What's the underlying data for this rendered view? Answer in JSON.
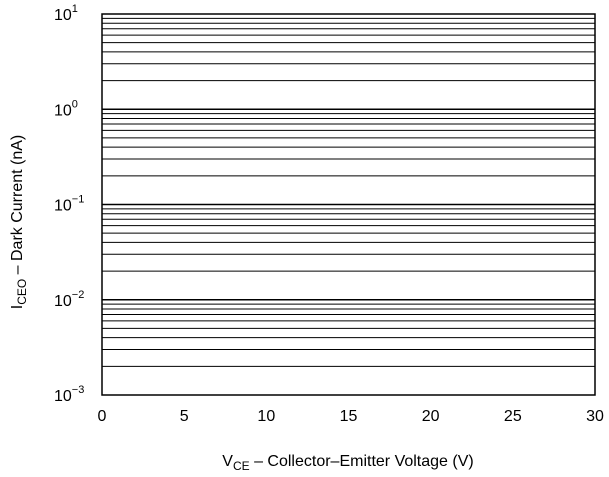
{
  "chart_data": {
    "type": "line",
    "title": "",
    "xlabel": {
      "main": "V",
      "subscript": "CE",
      "rest": " – Collector–Emitter Voltage (V)"
    },
    "ylabel": {
      "main": "I",
      "subscript": "CEO",
      "rest": " – Dark Current (nA)"
    },
    "xlim": [
      0,
      30
    ],
    "ylim": [
      0.001,
      10
    ],
    "y_scale": "log",
    "grid": true,
    "x_ticks": [
      "0",
      "5",
      "10",
      "15",
      "20",
      "25",
      "30"
    ],
    "y_ticks": [
      {
        "base": "10",
        "exp": "1"
      },
      {
        "base": "10",
        "exp": "0"
      },
      {
        "base": "10",
        "exp": "−1"
      },
      {
        "base": "10",
        "exp": "−2"
      },
      {
        "base": "10",
        "exp": "−3"
      }
    ],
    "series": []
  },
  "colors": {
    "axis": "#000000",
    "grid": "#000000",
    "background": "#ffffff"
  }
}
